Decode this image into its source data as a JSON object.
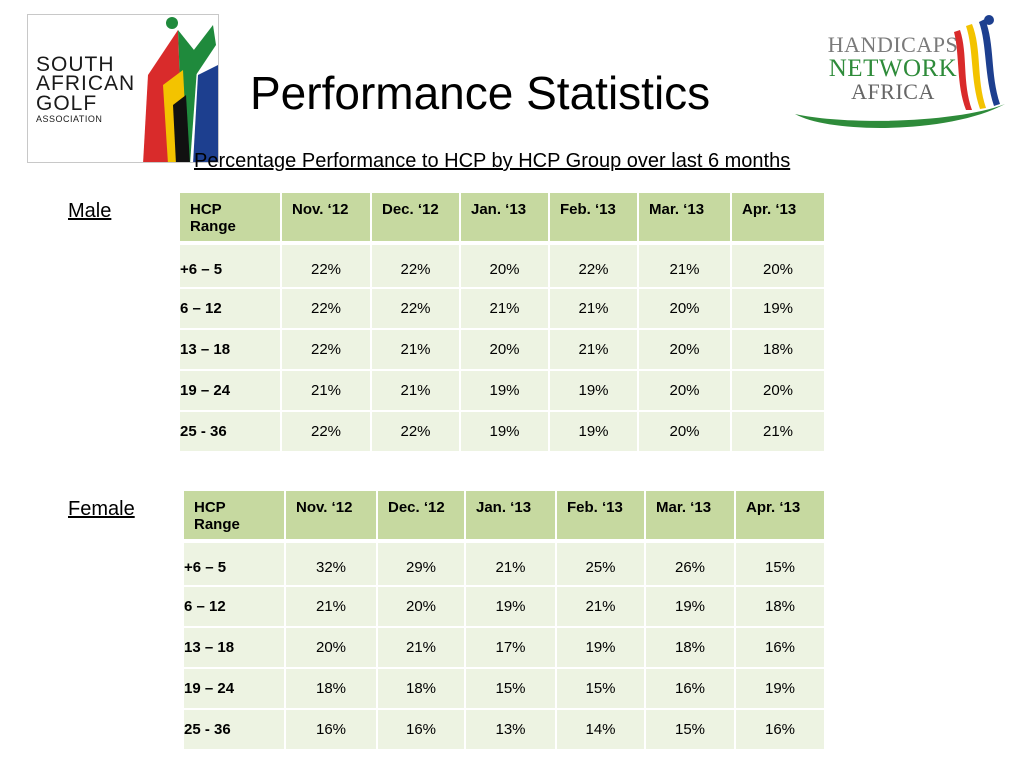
{
  "title": "Performance Statistics",
  "subtitle": "Percentage Performance to HCP by HCP Group over last 6 months",
  "logos": {
    "left": {
      "line1": "SOUTH",
      "line2": "AFRICAN",
      "line3": "GOLF",
      "line4": "ASSOCIATION"
    },
    "right": {
      "line1": "HANDICAPS",
      "line2": "NETWORK",
      "line3": "AFRICA"
    }
  },
  "male": {
    "label": "Male",
    "headers": [
      "HCP Range",
      "Nov. ‘12",
      "Dec. ‘12",
      "Jan. ‘13",
      "Feb. ‘13",
      "Mar. ‘13",
      "Apr. ‘13"
    ],
    "rows": [
      [
        "+6 – 5",
        "22%",
        "22%",
        "20%",
        "22%",
        "21%",
        "20%"
      ],
      [
        "6 – 12",
        "22%",
        "22%",
        "21%",
        "21%",
        "20%",
        "19%"
      ],
      [
        "13 – 18",
        "22%",
        "21%",
        "20%",
        "21%",
        "20%",
        "18%"
      ],
      [
        "19 – 24",
        "21%",
        "21%",
        "19%",
        "19%",
        "20%",
        "20%"
      ],
      [
        "25 - 36",
        "22%",
        "22%",
        "19%",
        "19%",
        "20%",
        "21%"
      ]
    ]
  },
  "female": {
    "label": "Female",
    "headers": [
      "HCP Range",
      "Nov. ‘12",
      "Dec. ‘12",
      "Jan. ‘13",
      "Feb. ‘13",
      "Mar. ‘13",
      "Apr. ‘13"
    ],
    "rows": [
      [
        "+6 – 5",
        "32%",
        "29%",
        "21%",
        "25%",
        "26%",
        "15%"
      ],
      [
        "6 – 12",
        "21%",
        "20%",
        "19%",
        "21%",
        "19%",
        "18%"
      ],
      [
        "13 – 18",
        "20%",
        "21%",
        "17%",
        "19%",
        "18%",
        "16%"
      ],
      [
        "19 – 24",
        "18%",
        "18%",
        "15%",
        "15%",
        "16%",
        "19%"
      ],
      [
        "25 - 36",
        "16%",
        "16%",
        "13%",
        "14%",
        "15%",
        "16%"
      ]
    ]
  },
  "colors": {
    "header_bg": "#c6d9a0",
    "cell_bg": "#edf3e2"
  }
}
